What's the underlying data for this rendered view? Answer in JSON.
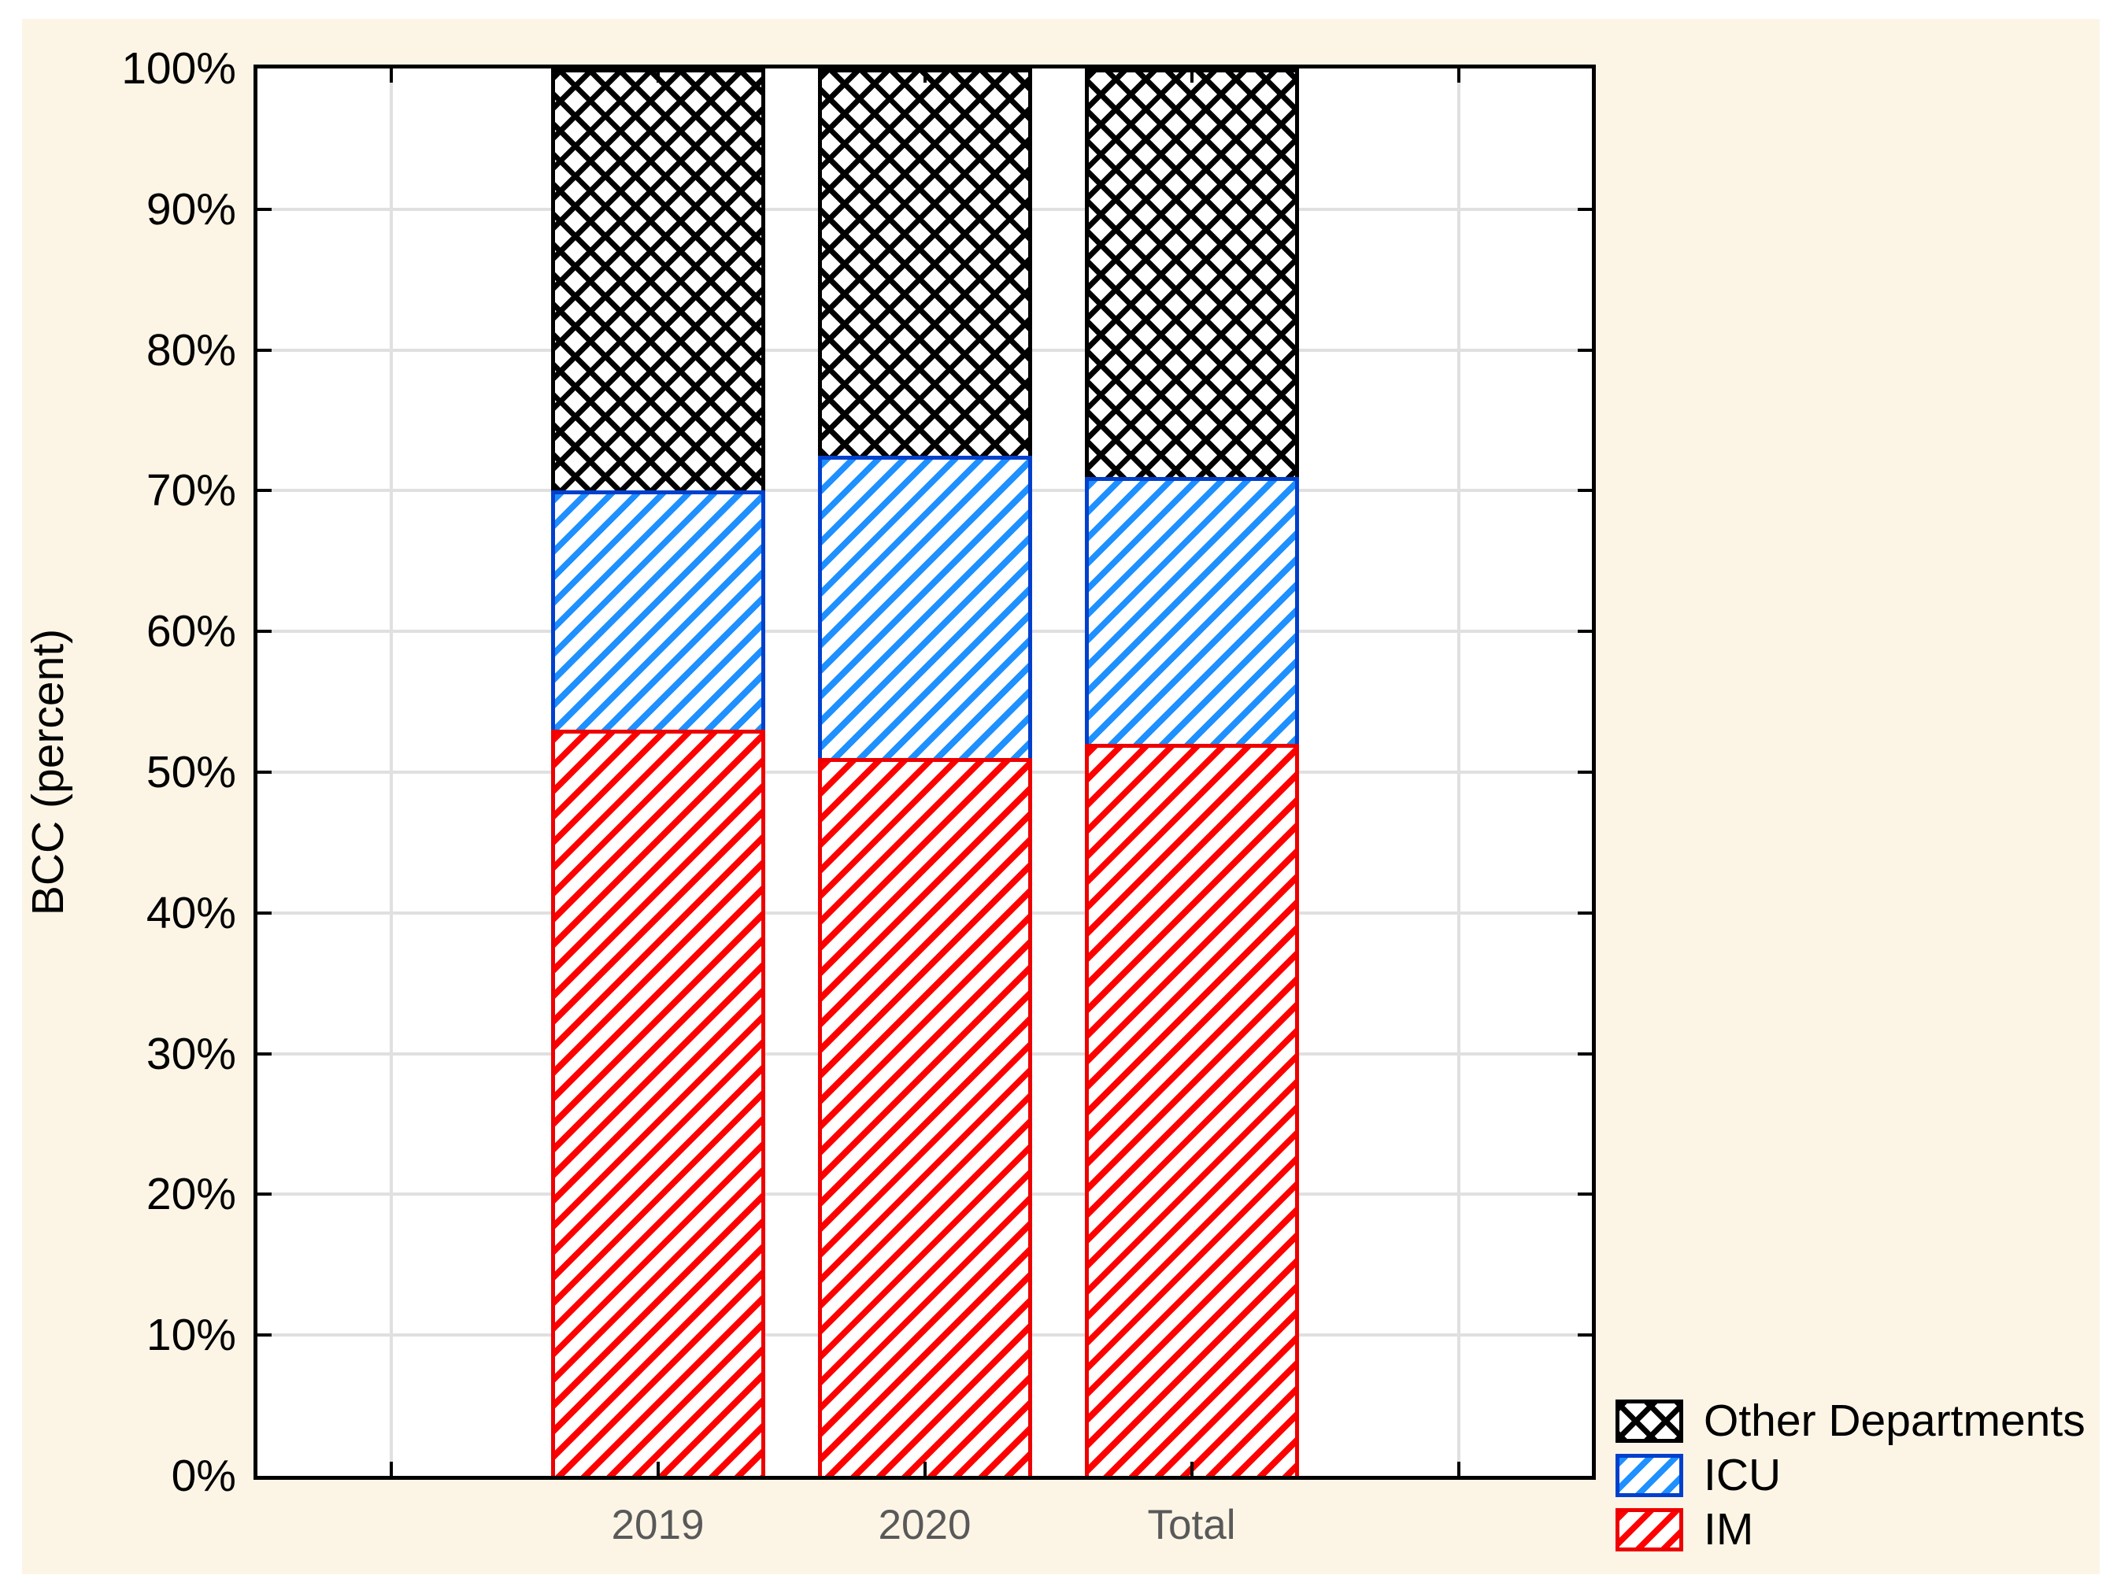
{
  "chart_data": {
    "type": "bar",
    "variant": "stacked-100-percent",
    "title": "",
    "xlabel": "",
    "ylabel": "BCC (percent)",
    "categories": [
      "2019",
      "2020",
      "Total"
    ],
    "series": [
      {
        "name": "IM",
        "values": [
          53,
          51,
          52
        ],
        "hatch": "diagonal",
        "hatch_color": "#ff0000",
        "border_color": "#ee0000"
      },
      {
        "name": "ICU",
        "values": [
          17,
          21.5,
          19
        ],
        "hatch": "diagonal",
        "hatch_color": "#1e90ff",
        "border_color": "#0040cc"
      },
      {
        "name": "Other Departments",
        "values": [
          30,
          27.5,
          29
        ],
        "hatch": "cross",
        "hatch_color": "#000000",
        "border_color": "#000000"
      }
    ],
    "stack_boundaries_percent": {
      "2019": {
        "IM_top": 53,
        "ICU_top": 70,
        "Other_top": 100
      },
      "2020": {
        "IM_top": 51,
        "ICU_top": 72.5,
        "Other_top": 100
      },
      "Total": {
        "IM_top": 52,
        "ICU_top": 71,
        "Other_top": 100
      }
    },
    "ylim": [
      0,
      100
    ],
    "yticks": [
      "0%",
      "10%",
      "20%",
      "30%",
      "40%",
      "50%",
      "60%",
      "70%",
      "80%",
      "90%",
      "100%"
    ],
    "grid": true,
    "legend_position": "bottom-right",
    "legend_order": [
      "Other Departments",
      "ICU",
      "IM"
    ]
  },
  "colors": {
    "page_background": "#ffffff",
    "canvas_background": "#fcf5e6",
    "plot_background": "#ffffff",
    "axis_frame": "#000000",
    "gridline": "#e0e0e0",
    "y_tick_text": "#000000",
    "x_category_text": "#595959",
    "legend_text": "#000000"
  }
}
